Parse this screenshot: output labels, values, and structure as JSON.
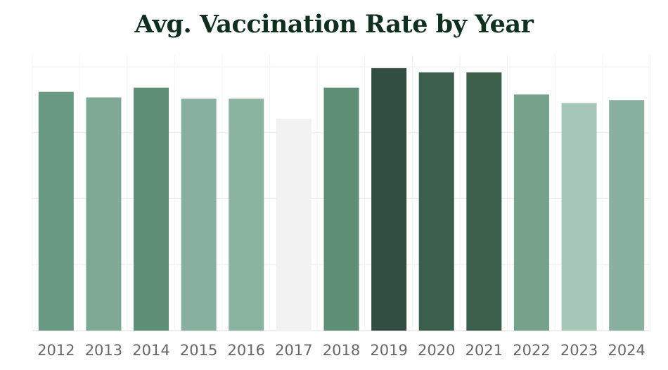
{
  "chart_data": {
    "type": "bar",
    "title": "Avg. Vaccination Rate by Year",
    "xlabel": "",
    "ylabel": "",
    "categories": [
      "2012",
      "2013",
      "2014",
      "2015",
      "2016",
      "2017",
      "2018",
      "2019",
      "2020",
      "2021",
      "2022",
      "2023",
      "2024"
    ],
    "values": [
      90.5,
      88.4,
      92.1,
      87.9,
      87.9,
      80.4,
      92.1,
      99.5,
      97.9,
      97.9,
      89.5,
      86.3,
      87.4
    ],
    "ylim": [
      0,
      100
    ],
    "grid": true,
    "colors": [
      "#6a9983",
      "#7fa994",
      "#5f8e77",
      "#87b19e",
      "#8ab3a0",
      "#f2f2f2",
      "#5f8e77",
      "#314e40",
      "#3b5f4c",
      "#3c5f4c",
      "#76a28c",
      "#a6c6b8",
      "#89b19f"
    ]
  }
}
